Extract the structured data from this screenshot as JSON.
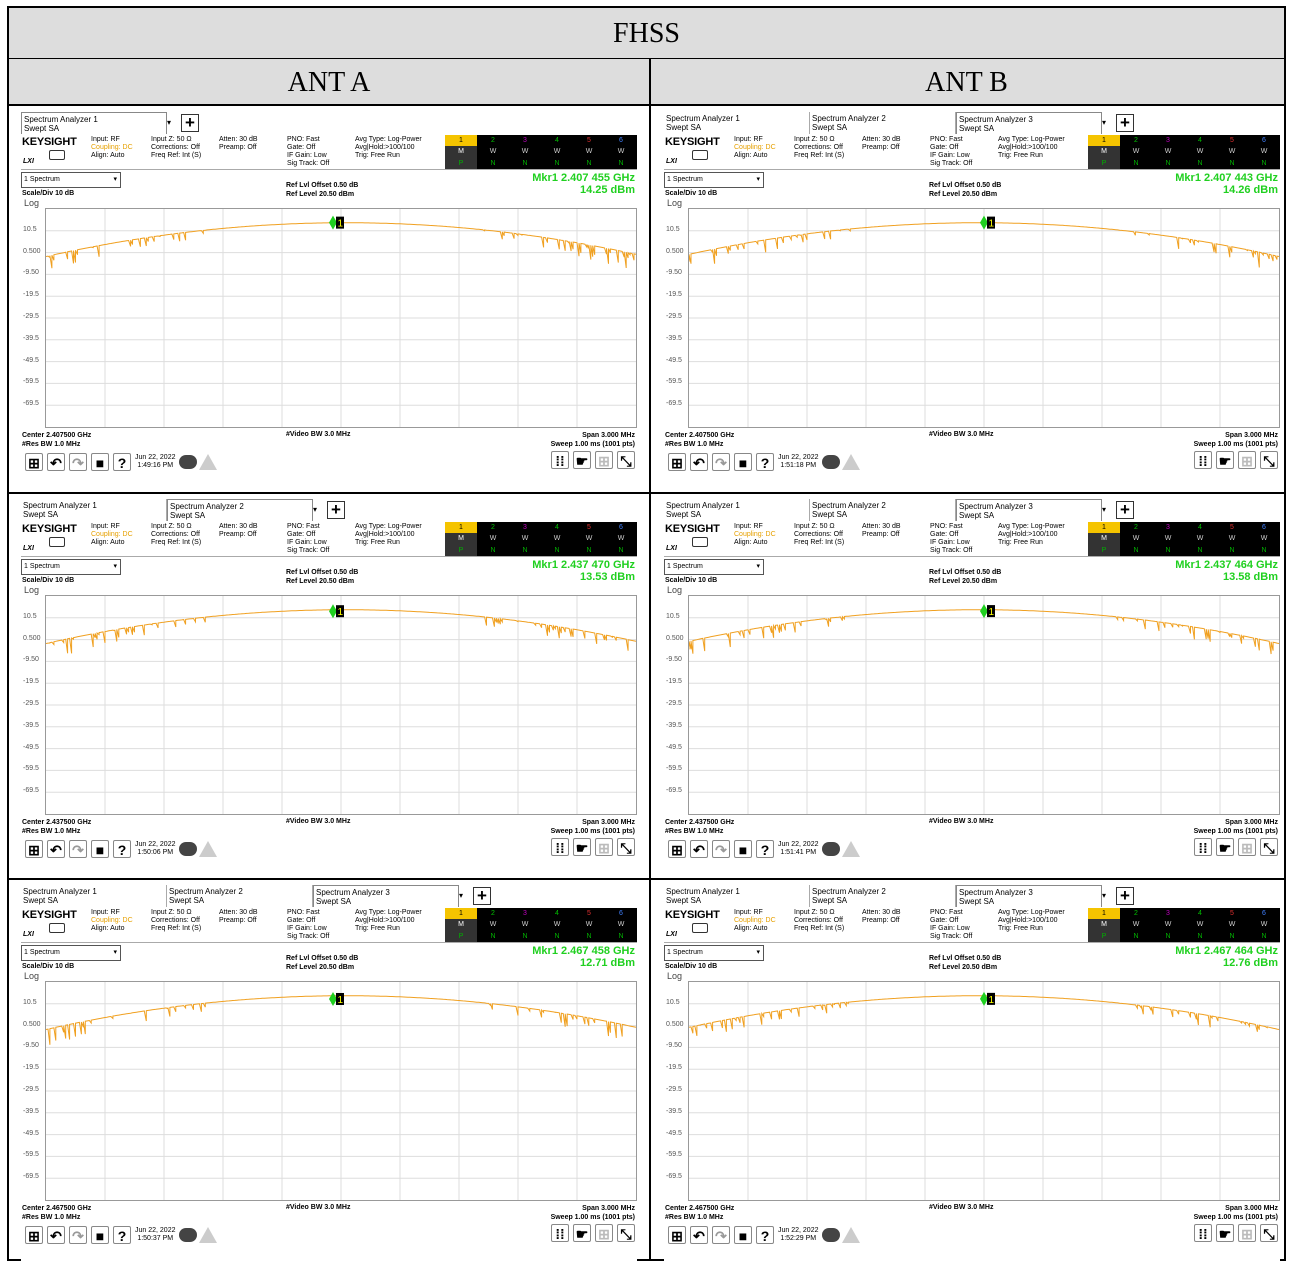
{
  "title": "FHSS",
  "columns": [
    "ANT A",
    "ANT B"
  ],
  "common": {
    "brand": "KEYSIGHT",
    "input": "Input: RF",
    "coupling": "Coupling: DC",
    "align": "Align: Auto",
    "inputz": "Input Z: 50 Ω",
    "corrections": "Corrections: Off",
    "freqref": "Freq Ref: Int (S)",
    "atten": "Atten: 30 dB",
    "preamp": "Preamp: Off",
    "pno": "PNO: Fast",
    "gate": "Gate: Off",
    "ifgain": "IF Gain: Low",
    "sigtrack": "Sig Track: Off",
    "avgtype": "Avg Type: Log-Power",
    "avghold": "Avg|Hold:>100/100",
    "trig": "Trig: Free Run",
    "spectrum": "1 Spectrum",
    "scalediv": "Scale/Div 10 dB",
    "log": "Log",
    "refoffset": "Ref Lvl Offset 0.50 dB",
    "reflevel": "Ref Level 20.50 dBm",
    "resbw": "#Res BW 1.0 MHz",
    "vbw": "#Video BW 3.0 MHz",
    "span": "Span 3.000 MHz",
    "sweep": "Sweep 1.00 ms (1001 pts)",
    "lxi": "LXI",
    "tab_sub": "Swept SA",
    "trace_nums": [
      "1",
      "2",
      "3",
      "4",
      "5",
      "6"
    ],
    "trace_m": [
      "M",
      "W",
      "W",
      "W",
      "W",
      "W"
    ],
    "trace_p": [
      "P",
      "N",
      "N",
      "N",
      "N",
      "N"
    ],
    "ylabels": [
      "10.5",
      "0.500",
      "-9.50",
      "-19.5",
      "-29.5",
      "-39.5",
      "-49.5",
      "-59.5",
      "-69.5"
    ]
  },
  "panels": [
    {
      "tabs": [
        "Spectrum Analyzer 1"
      ],
      "marker": "Mkr1  2.407 455 GHz",
      "level": "14.25 dBm",
      "center": "Center 2.407500 GHz",
      "date": "Jun 22, 2022",
      "time": "1:49:16 PM"
    },
    {
      "tabs": [
        "Spectrum Analyzer 1",
        "Spectrum Analyzer 2",
        "Spectrum Analyzer 3"
      ],
      "marker": "Mkr1  2.407 443 GHz",
      "level": "14.26 dBm",
      "center": "Center 2.407500 GHz",
      "date": "Jun 22, 2022",
      "time": "1:51:18 PM"
    },
    {
      "tabs": [
        "Spectrum Analyzer 1",
        "Spectrum Analyzer 2"
      ],
      "marker": "Mkr1  2.437 470 GHz",
      "level": "13.53 dBm",
      "center": "Center 2.437500 GHz",
      "date": "Jun 22, 2022",
      "time": "1:50:06 PM"
    },
    {
      "tabs": [
        "Spectrum Analyzer 1",
        "Spectrum Analyzer 2",
        "Spectrum Analyzer 3"
      ],
      "marker": "Mkr1  2.437 464 GHz",
      "level": "13.58 dBm",
      "center": "Center 2.437500 GHz",
      "date": "Jun 22, 2022",
      "time": "1:51:41 PM"
    },
    {
      "tabs": [
        "Spectrum Analyzer 1",
        "Spectrum Analyzer 2",
        "Spectrum Analyzer 3"
      ],
      "marker": "Mkr1  2.467 458 GHz",
      "level": "12.71 dBm",
      "center": "Center 2.467500 GHz",
      "date": "Jun 22, 2022",
      "time": "1:50:37 PM"
    },
    {
      "tabs": [
        "Spectrum Analyzer 1",
        "Spectrum Analyzer 2",
        "Spectrum Analyzer 3"
      ],
      "marker": "Mkr1  2.467 464 GHz",
      "level": "12.76 dBm",
      "center": "Center 2.467500 GHz",
      "date": "Jun 22, 2022",
      "time": "1:52:29 PM"
    }
  ],
  "colors": {
    "trace": "#f0a020",
    "marker": "#20d020",
    "header_bg": "#dddddd"
  }
}
